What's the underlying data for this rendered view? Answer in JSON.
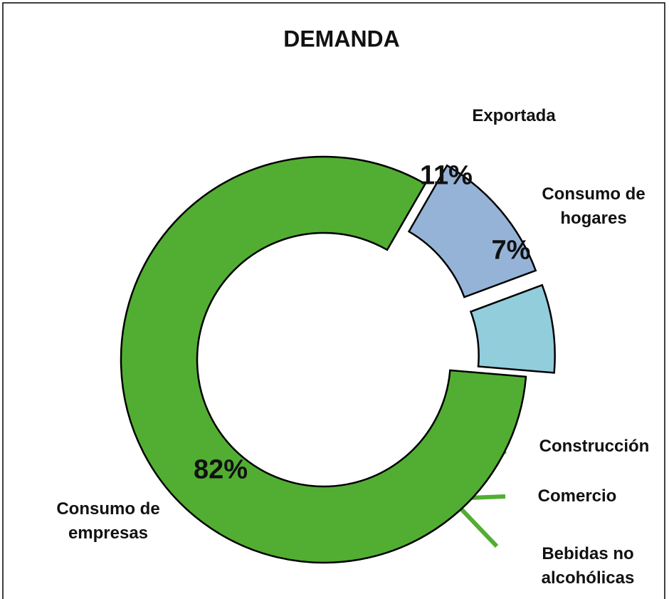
{
  "chart_data": {
    "type": "donut",
    "title": "DEMANDA",
    "categories": [
      "Exportada",
      "Consumo de hogares",
      "Consumo de empresas"
    ],
    "values": [
      11,
      7,
      82
    ],
    "value_labels": [
      "11%",
      "7%",
      "82%"
    ],
    "colors": [
      "#95b3d7",
      "#92cddc",
      "#52ae32"
    ],
    "annotations": [
      "Construcción",
      "Comercio",
      "Bebidas no alcohólicas"
    ]
  }
}
